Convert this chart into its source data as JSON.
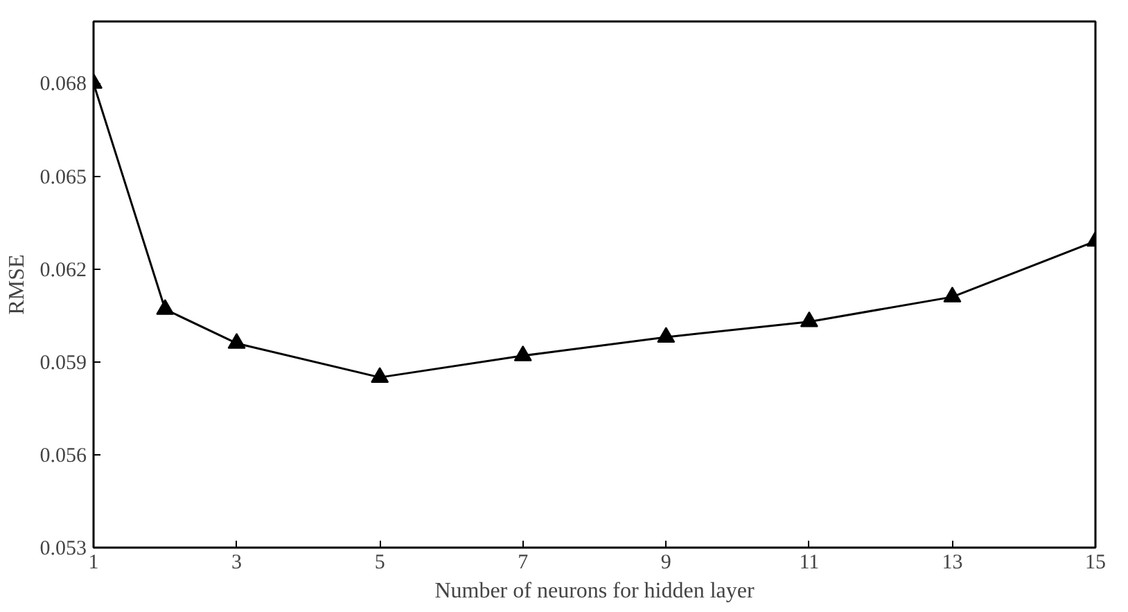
{
  "chart_data": {
    "type": "line",
    "xlabel": "Number of neurons for hidden layer",
    "ylabel": "RMSE",
    "x": [
      1,
      2,
      3,
      5,
      7,
      9,
      11,
      13,
      15
    ],
    "series": [
      {
        "color": "#000000",
        "values": [
          0.068,
          0.0607,
          0.0596,
          0.0585,
          0.0592,
          0.0598,
          0.0603,
          0.0611,
          0.0629
        ]
      }
    ],
    "xlim": [
      1,
      15
    ],
    "xticks": [
      1,
      3,
      5,
      7,
      9,
      11,
      13,
      15
    ],
    "ylim": [
      0.053,
      0.07
    ],
    "yticks": [
      0.053,
      0.056,
      0.059,
      0.062,
      0.065,
      0.068
    ],
    "marker": "triangle",
    "line_style": "solid"
  }
}
